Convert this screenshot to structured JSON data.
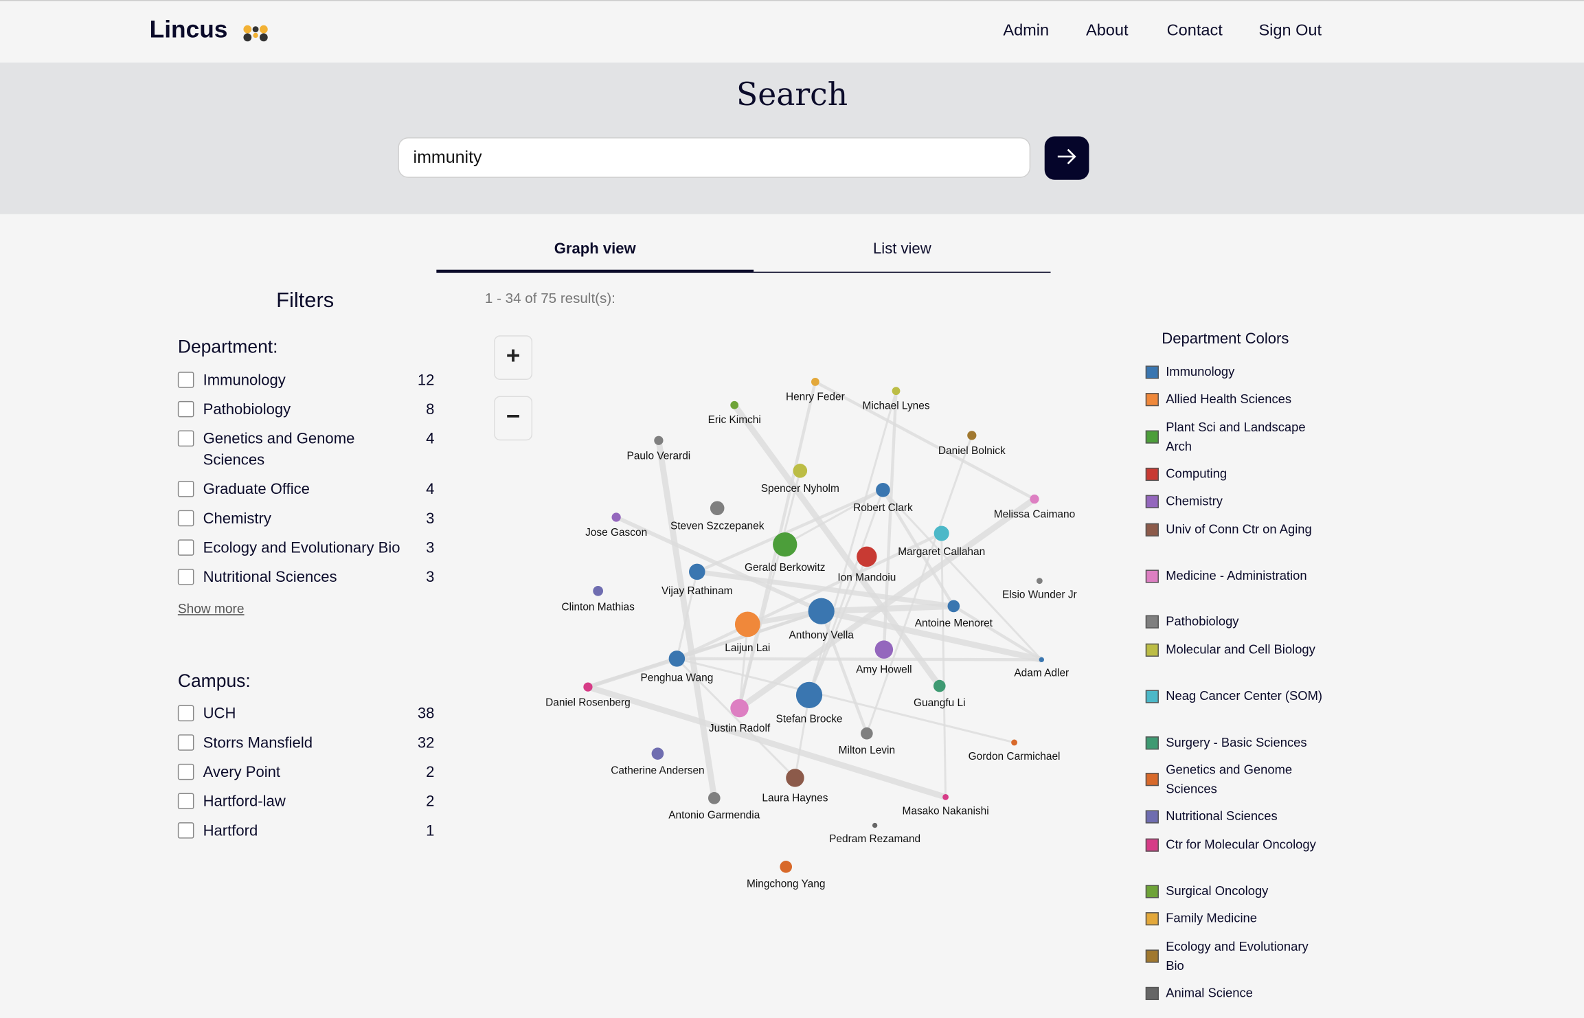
{
  "header": {
    "logo": "Lincus",
    "nav": [
      "Admin",
      "About",
      "Contact",
      "Sign Out"
    ]
  },
  "search": {
    "title": "Search",
    "value": "immunity"
  },
  "tabs": [
    "Graph view",
    "List view"
  ],
  "results_text": "1 - 34 of 75 result(s):",
  "filters": {
    "title": "Filters",
    "department": {
      "label": "Department:",
      "items": [
        {
          "label": "Immunology",
          "count": "12"
        },
        {
          "label": "Pathobiology",
          "count": "8"
        },
        {
          "label": "Genetics and Genome Sciences",
          "count": "4"
        },
        {
          "label": "Graduate Office",
          "count": "4"
        },
        {
          "label": "Chemistry",
          "count": "3"
        },
        {
          "label": "Ecology and Evolutionary Bio",
          "count": "3"
        },
        {
          "label": "Nutritional Sciences",
          "count": "3"
        }
      ],
      "show_more": "Show more"
    },
    "campus": {
      "label": "Campus:",
      "items": [
        {
          "label": "UCH",
          "count": "38"
        },
        {
          "label": "Storrs Mansfield",
          "count": "32"
        },
        {
          "label": "Avery Point",
          "count": "2"
        },
        {
          "label": "Hartford-law",
          "count": "2"
        },
        {
          "label": "Hartford",
          "count": "1"
        }
      ]
    }
  },
  "zoom": {
    "in": "+",
    "out": "−"
  },
  "legend": {
    "title": "Department Colors",
    "items": [
      {
        "label": "Immunology",
        "color": "#3a76b0"
      },
      {
        "label": "Allied Health Sciences",
        "color": "#f0883a"
      },
      {
        "label": "Plant Sci and Landscape Arch",
        "color": "#4c9e3a"
      },
      {
        "label": "Computing",
        "color": "#c83a33"
      },
      {
        "label": "Chemistry",
        "color": "#9467bd"
      },
      {
        "label": "Univ of Conn Ctr on Aging",
        "color": "#8c5a4a"
      },
      {
        "label": "Medicine - Administration",
        "color": "#dd7fc2"
      },
      {
        "label": "Pathobiology",
        "color": "#7f7f7f"
      },
      {
        "label": "Molecular and Cell Biology",
        "color": "#bcbd45"
      },
      {
        "label": "Neag Cancer Center (SOM)",
        "color": "#4cb8c8"
      },
      {
        "label": "Surgery - Basic Sciences",
        "color": "#3e9a72"
      },
      {
        "label": "Genetics and Genome Sciences",
        "color": "#d8692a"
      },
      {
        "label": "Nutritional Sciences",
        "color": "#6f6db0"
      },
      {
        "label": "Ctr for Molecular Oncology",
        "color": "#d63c87"
      },
      {
        "label": "Surgical Oncology",
        "color": "#6ea338"
      },
      {
        "label": "Family Medicine",
        "color": "#e3a83a"
      },
      {
        "label": "Ecology and Evolutionary Bio",
        "color": "#a0782f"
      },
      {
        "label": "Animal Science",
        "color": "#666666"
      }
    ]
  },
  "graph": {
    "nodes": [
      {
        "name": "Henry Feder",
        "color": "#e3a83a"
      },
      {
        "name": "Michael Lynes",
        "color": "#bcbd45"
      },
      {
        "name": "Eric Kimchi",
        "color": "#6ea338"
      },
      {
        "name": "Daniel Bolnick",
        "color": "#a0782f"
      },
      {
        "name": "Paulo Verardi",
        "color": "#7f7f7f"
      },
      {
        "name": "Spencer Nyholm",
        "color": "#bcbd45"
      },
      {
        "name": "Robert Clark",
        "color": "#3a76b0"
      },
      {
        "name": "Melissa Caimano",
        "color": "#dd7fc2"
      },
      {
        "name": "Steven Szczepanek",
        "color": "#7f7f7f"
      },
      {
        "name": "Jose Gascon",
        "color": "#9467bd"
      },
      {
        "name": "Margaret Callahan",
        "color": "#4cb8c8"
      },
      {
        "name": "Gerald Berkowitz",
        "color": "#4c9e3a"
      },
      {
        "name": "Ion Mandoiu",
        "color": "#c83a33"
      },
      {
        "name": "Vijay Rathinam",
        "color": "#3a76b0"
      },
      {
        "name": "Elsio Wunder Jr",
        "color": "#7f7f7f"
      },
      {
        "name": "Clinton Mathias",
        "color": "#6f6db0"
      },
      {
        "name": "Antoine Menoret",
        "color": "#3a76b0"
      },
      {
        "name": "Anthony Vella",
        "color": "#3a76b0"
      },
      {
        "name": "Laijun Lai",
        "color": "#f0883a"
      },
      {
        "name": "Amy Howell",
        "color": "#9467bd"
      },
      {
        "name": "Adam Adler",
        "color": "#3a76b0"
      },
      {
        "name": "Penghua Wang",
        "color": "#3a76b0"
      },
      {
        "name": "Guangfu Li",
        "color": "#3e9a72"
      },
      {
        "name": "Daniel Rosenberg",
        "color": "#d63c87"
      },
      {
        "name": "Stefan Brocke",
        "color": "#3a76b0"
      },
      {
        "name": "Justin Radolf",
        "color": "#dd7fc2"
      },
      {
        "name": "Milton Levin",
        "color": "#7f7f7f"
      },
      {
        "name": "Gordon Carmichael",
        "color": "#d8692a"
      },
      {
        "name": "Catherine Andersen",
        "color": "#6f6db0"
      },
      {
        "name": "Laura Haynes",
        "color": "#8c5a4a"
      },
      {
        "name": "Masako Nakanishi",
        "color": "#d63c87"
      },
      {
        "name": "Antonio Garmendia",
        "color": "#7f7f7f"
      },
      {
        "name": "Pedram Rezamand",
        "color": "#666666"
      },
      {
        "name": "Mingchong Yang",
        "color": "#d8692a"
      }
    ]
  }
}
